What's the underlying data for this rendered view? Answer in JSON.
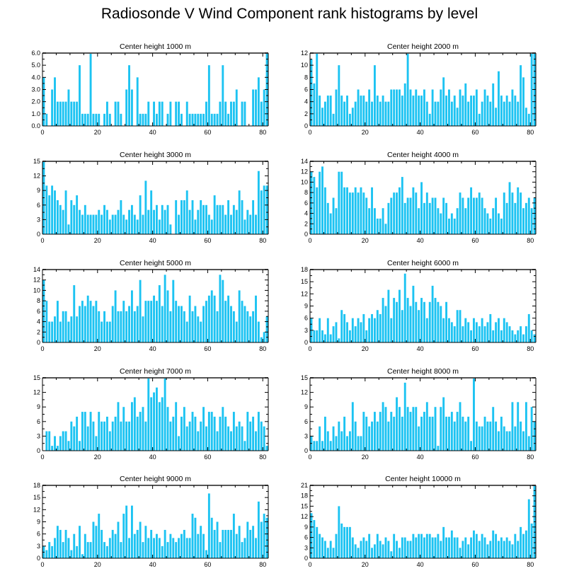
{
  "figure": {
    "title": "Radiosonde V Wind Component rank histograms by level",
    "bar_color": "#1cc3f2",
    "frame_color": "#000000",
    "panel_top_color": "#555555"
  },
  "chart_data": [
    {
      "type": "bar",
      "title": "Center height 1000 m",
      "xlim": [
        0,
        82
      ],
      "ylim": [
        0,
        6
      ],
      "xticks": [
        0,
        20,
        40,
        60,
        80
      ],
      "yticks": [
        0,
        1,
        2,
        3,
        4,
        5,
        6
      ],
      "ytick_labels": [
        "0.0",
        "1.0",
        "2.0",
        "3.0",
        "4.0",
        "5.0",
        "6.0"
      ],
      "values": [
        4,
        1,
        0,
        3,
        4,
        2,
        2,
        2,
        2,
        3,
        2,
        2,
        2,
        5,
        1,
        1,
        1,
        6,
        1,
        1,
        1,
        0,
        1,
        2,
        1,
        0,
        2,
        2,
        1,
        0,
        3,
        5,
        3,
        0,
        4,
        1,
        1,
        1,
        2,
        0,
        2,
        1,
        2,
        2,
        0,
        1,
        2,
        0,
        2,
        2,
        1,
        0,
        2,
        1,
        1,
        1,
        1,
        1,
        1,
        2,
        5,
        1,
        1,
        1,
        2,
        5,
        2,
        1,
        2,
        2,
        3,
        0,
        2,
        2,
        0,
        0,
        3,
        3,
        4,
        2,
        3,
        6
      ]
    },
    {
      "type": "bar",
      "title": "Center height 2000 m",
      "xlim": [
        0,
        82
      ],
      "ylim": [
        0,
        12
      ],
      "xticks": [
        0,
        20,
        40,
        60,
        80
      ],
      "yticks": [
        0,
        2,
        4,
        6,
        8,
        10,
        12
      ],
      "ytick_labels": [
        "0",
        "2",
        "4",
        "6",
        "8",
        "10",
        "12"
      ],
      "values": [
        11,
        7,
        12,
        5,
        3,
        4,
        5,
        5,
        2,
        6,
        10,
        5,
        4,
        5,
        2,
        3,
        4,
        6,
        5,
        5,
        4,
        6,
        4,
        10,
        5,
        4,
        5,
        4,
        4,
        6,
        6,
        6,
        6,
        5,
        7,
        12,
        6,
        5,
        6,
        5,
        5,
        6,
        4,
        2,
        6,
        4,
        4,
        6,
        8,
        5,
        6,
        4,
        5,
        3,
        6,
        5,
        7,
        4,
        5,
        5,
        6,
        2,
        4,
        6,
        5,
        4,
        7,
        3,
        9,
        5,
        4,
        5,
        4,
        6,
        5,
        4,
        10,
        8,
        3,
        2,
        12,
        12
      ]
    },
    {
      "type": "bar",
      "title": "Center height 3000 m",
      "xlim": [
        0,
        82
      ],
      "ylim": [
        0,
        15
      ],
      "xticks": [
        0,
        20,
        40,
        60,
        80
      ],
      "yticks": [
        0,
        3,
        6,
        9,
        12,
        15
      ],
      "ytick_labels": [
        "0",
        "3",
        "6",
        "9",
        "12",
        "15"
      ],
      "values": [
        15,
        10,
        8,
        10,
        9,
        7,
        6,
        5,
        9,
        2,
        7,
        6,
        8,
        5,
        4,
        6,
        4,
        4,
        4,
        4,
        5,
        4,
        6,
        5,
        3,
        4,
        4,
        5,
        7,
        4,
        3,
        5,
        6,
        4,
        3,
        8,
        4,
        11,
        5,
        9,
        5,
        6,
        3,
        6,
        5,
        6,
        2,
        0,
        7,
        4,
        7,
        7,
        9,
        5,
        7,
        3,
        5,
        7,
        6,
        6,
        4,
        3,
        8,
        6,
        6,
        6,
        4,
        7,
        4,
        6,
        5,
        9,
        7,
        3,
        5,
        4,
        7,
        4,
        13,
        9,
        10,
        10
      ]
    },
    {
      "type": "bar",
      "title": "Center height 4000 m",
      "xlim": [
        0,
        82
      ],
      "ylim": [
        0,
        14
      ],
      "xticks": [
        0,
        20,
        40,
        60,
        80
      ],
      "yticks": [
        0,
        2,
        4,
        6,
        8,
        10,
        12,
        14
      ],
      "ytick_labels": [
        "0",
        "2",
        "4",
        "6",
        "8",
        "10",
        "12",
        "14"
      ],
      "values": [
        12,
        11,
        9,
        12,
        13,
        9,
        6,
        4,
        7,
        5,
        12,
        12,
        9,
        9,
        8,
        8,
        9,
        8,
        9,
        8,
        7,
        5,
        9,
        5,
        3,
        3,
        5,
        2,
        6,
        7,
        8,
        8,
        9,
        11,
        6,
        7,
        7,
        9,
        8,
        5,
        10,
        6,
        8,
        6,
        7,
        7,
        5,
        4,
        7,
        6,
        3,
        4,
        3,
        5,
        8,
        7,
        5,
        7,
        9,
        7,
        7,
        8,
        7,
        5,
        4,
        3,
        5,
        7,
        4,
        3,
        8,
        6,
        10,
        8,
        6,
        9,
        8,
        5,
        6,
        7,
        5,
        7
      ]
    },
    {
      "type": "bar",
      "title": "Center height 5000 m",
      "xlim": [
        0,
        82
      ],
      "ylim": [
        0,
        14
      ],
      "xticks": [
        0,
        20,
        40,
        60,
        80
      ],
      "yticks": [
        0,
        2,
        4,
        6,
        8,
        10,
        12,
        14
      ],
      "ytick_labels": [
        "0",
        "2",
        "4",
        "6",
        "8",
        "10",
        "12",
        "14"
      ],
      "values": [
        12,
        8,
        4,
        4,
        5,
        8,
        4,
        6,
        6,
        4,
        5,
        11,
        5,
        7,
        8,
        7,
        9,
        8,
        7,
        8,
        6,
        4,
        6,
        4,
        4,
        7,
        10,
        6,
        6,
        8,
        6,
        7,
        10,
        6,
        7,
        12,
        5,
        8,
        8,
        8,
        9,
        8,
        11,
        7,
        13,
        10,
        6,
        12,
        8,
        7,
        7,
        6,
        4,
        9,
        6,
        7,
        5,
        4,
        7,
        8,
        9,
        10,
        9,
        6,
        13,
        12,
        8,
        9,
        7,
        6,
        4,
        10,
        8,
        7,
        6,
        5,
        6,
        9,
        4,
        1,
        2,
        5
      ]
    },
    {
      "type": "bar",
      "title": "Center height 6000 m",
      "xlim": [
        0,
        82
      ],
      "ylim": [
        0,
        18
      ],
      "xticks": [
        0,
        20,
        40,
        60,
        80
      ],
      "yticks": [
        0,
        3,
        6,
        9,
        12,
        15,
        18
      ],
      "ytick_labels": [
        "0",
        "3",
        "6",
        "9",
        "12",
        "15",
        "18"
      ],
      "values": [
        6,
        3,
        3,
        6,
        3,
        2,
        6,
        2,
        4,
        5,
        1,
        8,
        7,
        5,
        3,
        6,
        4,
        6,
        5,
        7,
        3,
        6,
        7,
        6,
        8,
        7,
        11,
        9,
        13,
        6,
        11,
        10,
        13,
        8,
        17,
        11,
        9,
        14,
        10,
        8,
        11,
        10,
        6,
        10,
        14,
        11,
        10,
        9,
        6,
        10,
        6,
        5,
        4,
        8,
        8,
        4,
        6,
        5,
        3,
        6,
        5,
        4,
        6,
        4,
        5,
        7,
        3,
        5,
        6,
        3,
        6,
        5,
        4,
        3,
        2,
        3,
        4,
        2,
        4,
        7,
        3,
        2
      ]
    },
    {
      "type": "bar",
      "title": "Center height 7000 m",
      "xlim": [
        0,
        82
      ],
      "ylim": [
        0,
        15
      ],
      "xticks": [
        0,
        20,
        40,
        60,
        80
      ],
      "yticks": [
        0,
        3,
        6,
        9,
        12,
        15
      ],
      "ytick_labels": [
        "0",
        "3",
        "6",
        "9",
        "12",
        "15"
      ],
      "values": [
        0,
        4,
        4,
        1,
        3,
        1,
        3,
        4,
        4,
        2,
        6,
        5,
        7,
        2,
        8,
        8,
        5,
        8,
        6,
        3,
        8,
        6,
        6,
        7,
        4,
        6,
        7,
        10,
        6,
        9,
        6,
        6,
        10,
        11,
        7,
        8,
        9,
        6,
        15,
        11,
        12,
        13,
        10,
        11,
        15,
        9,
        6,
        7,
        10,
        3,
        7,
        9,
        5,
        6,
        8,
        7,
        4,
        6,
        9,
        5,
        8,
        8,
        7,
        4,
        7,
        9,
        7,
        5,
        4,
        8,
        5,
        6,
        5,
        2,
        8,
        6,
        7,
        4,
        8,
        6,
        5,
        1
      ]
    },
    {
      "type": "bar",
      "title": "Center height 8000 m",
      "xlim": [
        0,
        82
      ],
      "ylim": [
        0,
        15
      ],
      "xticks": [
        0,
        20,
        40,
        60,
        80
      ],
      "yticks": [
        0,
        3,
        6,
        9,
        12,
        15
      ],
      "ytick_labels": [
        "0",
        "3",
        "6",
        "9",
        "12",
        "15"
      ],
      "values": [
        3,
        2,
        2,
        5,
        2,
        7,
        4,
        2,
        5,
        3,
        6,
        4,
        7,
        3,
        4,
        10,
        6,
        3,
        3,
        8,
        7,
        5,
        6,
        8,
        6,
        8,
        10,
        9,
        6,
        8,
        7,
        11,
        9,
        7,
        14,
        9,
        8,
        9,
        9,
        5,
        7,
        8,
        10,
        7,
        7,
        9,
        1,
        9,
        11,
        7,
        7,
        8,
        6,
        8,
        10,
        7,
        6,
        7,
        2,
        15,
        6,
        5,
        5,
        7,
        6,
        6,
        9,
        6,
        4,
        7,
        5,
        4,
        4,
        10,
        5,
        10,
        6,
        4,
        10,
        3,
        9,
        6
      ]
    },
    {
      "type": "bar",
      "title": "Center height 9000 m",
      "xlim": [
        0,
        82
      ],
      "ylim": [
        0,
        18
      ],
      "xticks": [
        0,
        20,
        40,
        60,
        80
      ],
      "yticks": [
        0,
        3,
        6,
        9,
        12,
        15,
        18
      ],
      "ytick_labels": [
        "0",
        "3",
        "6",
        "9",
        "12",
        "15",
        "18"
      ],
      "values": [
        3,
        2,
        4,
        3,
        5,
        8,
        7,
        4,
        7,
        5,
        2,
        6,
        3,
        8,
        1,
        6,
        4,
        4,
        9,
        8,
        11,
        7,
        4,
        3,
        5,
        7,
        6,
        9,
        4,
        11,
        13,
        5,
        13,
        6,
        7,
        9,
        4,
        8,
        5,
        7,
        5,
        6,
        5,
        3,
        7,
        4,
        6,
        5,
        4,
        5,
        6,
        7,
        5,
        5,
        11,
        10,
        6,
        8,
        6,
        2,
        16,
        10,
        7,
        9,
        4,
        7,
        7,
        7,
        7,
        11,
        6,
        8,
        4,
        5,
        9,
        7,
        8,
        5,
        14,
        9,
        11,
        10
      ]
    },
    {
      "type": "bar",
      "title": "Center height 10000 m",
      "xlim": [
        0,
        82
      ],
      "ylim": [
        0,
        21
      ],
      "xticks": [
        0,
        20,
        40,
        60,
        80
      ],
      "yticks": [
        0,
        3,
        6,
        9,
        12,
        15,
        18,
        21
      ],
      "ytick_labels": [
        "0",
        "3",
        "6",
        "9",
        "12",
        "15",
        "18",
        "21"
      ],
      "values": [
        13,
        11,
        9,
        7,
        6,
        5,
        3,
        5,
        3,
        7,
        15,
        10,
        9,
        9,
        9,
        6,
        4,
        3,
        5,
        6,
        5,
        7,
        3,
        4,
        7,
        5,
        4,
        6,
        5,
        2,
        7,
        5,
        3,
        6,
        6,
        5,
        5,
        7,
        6,
        7,
        7,
        6,
        7,
        7,
        6,
        6,
        7,
        5,
        9,
        6,
        6,
        8,
        6,
        6,
        3,
        5,
        6,
        4,
        6,
        8,
        7,
        5,
        7,
        6,
        4,
        5,
        8,
        7,
        5,
        6,
        5,
        6,
        5,
        4,
        7,
        5,
        9,
        7,
        8,
        17,
        10,
        21
      ]
    }
  ]
}
